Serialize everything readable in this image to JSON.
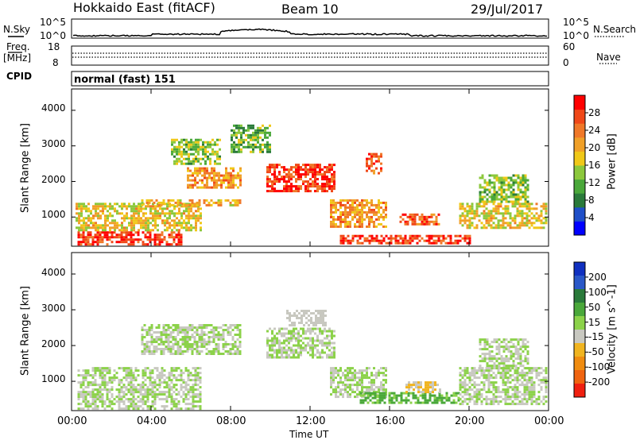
{
  "header": {
    "title": "Hokkaido East (fitACF)",
    "beam": "Beam 10",
    "date": "29/Jul/2017"
  },
  "nsky_panel": {
    "left_label": "N.Sky",
    "right_label": "N.Search",
    "left_ticks": [
      "10^5",
      "10^0"
    ],
    "right_ticks": [
      "10^5",
      "10^0"
    ]
  },
  "freq_panel": {
    "left_label_line1": "Freq.",
    "left_label_line2": "[MHz]",
    "right_label": "Nave",
    "left_ticks": [
      "18",
      "8"
    ],
    "right_ticks": [
      "60",
      "0"
    ]
  },
  "cpid": {
    "label": "CPID",
    "value": "normal (fast) 151"
  },
  "chart_data": [
    {
      "type": "heatmap",
      "ylabel": "Slant Range [km]",
      "xlabel": "",
      "x_ticks": [],
      "y_ticks": [
        "1000",
        "2000",
        "3000",
        "4000"
      ],
      "ylim": [
        180,
        4600
      ],
      "xlim_hours": [
        0,
        24
      ],
      "colorbar": {
        "label": "Power [dB]",
        "ticks": [
          "4",
          "8",
          "12",
          "16",
          "20",
          "24",
          "28"
        ],
        "range": [
          0,
          32
        ],
        "colors": [
          "#0000ff",
          "#1f4fc8",
          "#2a7a3a",
          "#4aa83a",
          "#8cc83c",
          "#f0c818",
          "#f0a028",
          "#f07828",
          "#f04818",
          "#ff0000"
        ]
      },
      "echo_regions": [
        {
          "t0": 0.3,
          "t1": 5.5,
          "r0": 250,
          "r1": 600,
          "power": 28
        },
        {
          "t0": 0.2,
          "t1": 6.5,
          "r0": 600,
          "r1": 1400,
          "power": 18
        },
        {
          "t0": 3.5,
          "t1": 8.5,
          "r0": 1300,
          "r1": 1500,
          "power": 20
        },
        {
          "t0": 5.8,
          "t1": 8.5,
          "r0": 1800,
          "r1": 2400,
          "power": 22
        },
        {
          "t0": 9.8,
          "t1": 13.2,
          "r0": 1700,
          "r1": 2500,
          "power": 28
        },
        {
          "t0": 13.0,
          "t1": 15.8,
          "r0": 700,
          "r1": 1500,
          "power": 22
        },
        {
          "t0": 14.8,
          "t1": 15.6,
          "r0": 2200,
          "r1": 2800,
          "power": 26
        },
        {
          "t0": 13.5,
          "t1": 20.0,
          "r0": 250,
          "r1": 500,
          "power": 28
        },
        {
          "t0": 16.5,
          "t1": 18.5,
          "r0": 800,
          "r1": 1100,
          "power": 26
        },
        {
          "t0": 19.5,
          "t1": 23.9,
          "r0": 700,
          "r1": 1400,
          "power": 18
        },
        {
          "t0": 20.5,
          "t1": 23.0,
          "r0": 1400,
          "r1": 2200,
          "power": 14
        },
        {
          "t0": 5.0,
          "t1": 7.5,
          "r0": 2500,
          "r1": 3200,
          "power": 14
        },
        {
          "t0": 8.0,
          "t1": 10.0,
          "r0": 2800,
          "r1": 3600,
          "power": 12
        }
      ]
    },
    {
      "type": "heatmap",
      "ylabel": "Slant Range [km]",
      "xlabel": "Time UT",
      "x_ticks": [
        "00:00",
        "04:00",
        "08:00",
        "12:00",
        "16:00",
        "20:00",
        "00:00"
      ],
      "y_ticks": [
        "1000",
        "2000",
        "3000",
        "4000"
      ],
      "ylim": [
        180,
        4600
      ],
      "xlim_hours": [
        0,
        24
      ],
      "colorbar": {
        "label": "Velocity [m s^-1]",
        "ticks": [
          "200",
          "100",
          "50",
          "15",
          "-15",
          "-50",
          "-100",
          "-200"
        ],
        "range": [
          -250,
          250
        ],
        "colors": [
          "#1030c0",
          "#2a58c8",
          "#2a7a3a",
          "#4aa83a",
          "#8cd24a",
          "#c8c8c0",
          "#f0b420",
          "#f08c10",
          "#f06410",
          "#f02010"
        ]
      },
      "echo_regions": [
        {
          "t0": 0.3,
          "t1": 6.5,
          "r0": 250,
          "r1": 1400,
          "velocity": 0
        },
        {
          "t0": 3.5,
          "t1": 8.5,
          "r0": 1800,
          "r1": 2600,
          "velocity": 0
        },
        {
          "t0": 9.8,
          "t1": 13.2,
          "r0": 1700,
          "r1": 2500,
          "velocity": 0
        },
        {
          "t0": 10.8,
          "t1": 12.8,
          "r0": 2600,
          "r1": 3000,
          "velocity": -30
        },
        {
          "t0": 13.0,
          "t1": 15.8,
          "r0": 600,
          "r1": 1400,
          "velocity": 0
        },
        {
          "t0": 14.5,
          "t1": 19.5,
          "r0": 400,
          "r1": 700,
          "velocity": 60
        },
        {
          "t0": 16.8,
          "t1": 18.6,
          "r0": 700,
          "r1": 1000,
          "velocity": -50
        },
        {
          "t0": 19.5,
          "t1": 23.9,
          "r0": 400,
          "r1": 1400,
          "velocity": 0
        },
        {
          "t0": 20.5,
          "t1": 23.0,
          "r0": 1400,
          "r1": 2200,
          "velocity": 0
        }
      ]
    }
  ]
}
